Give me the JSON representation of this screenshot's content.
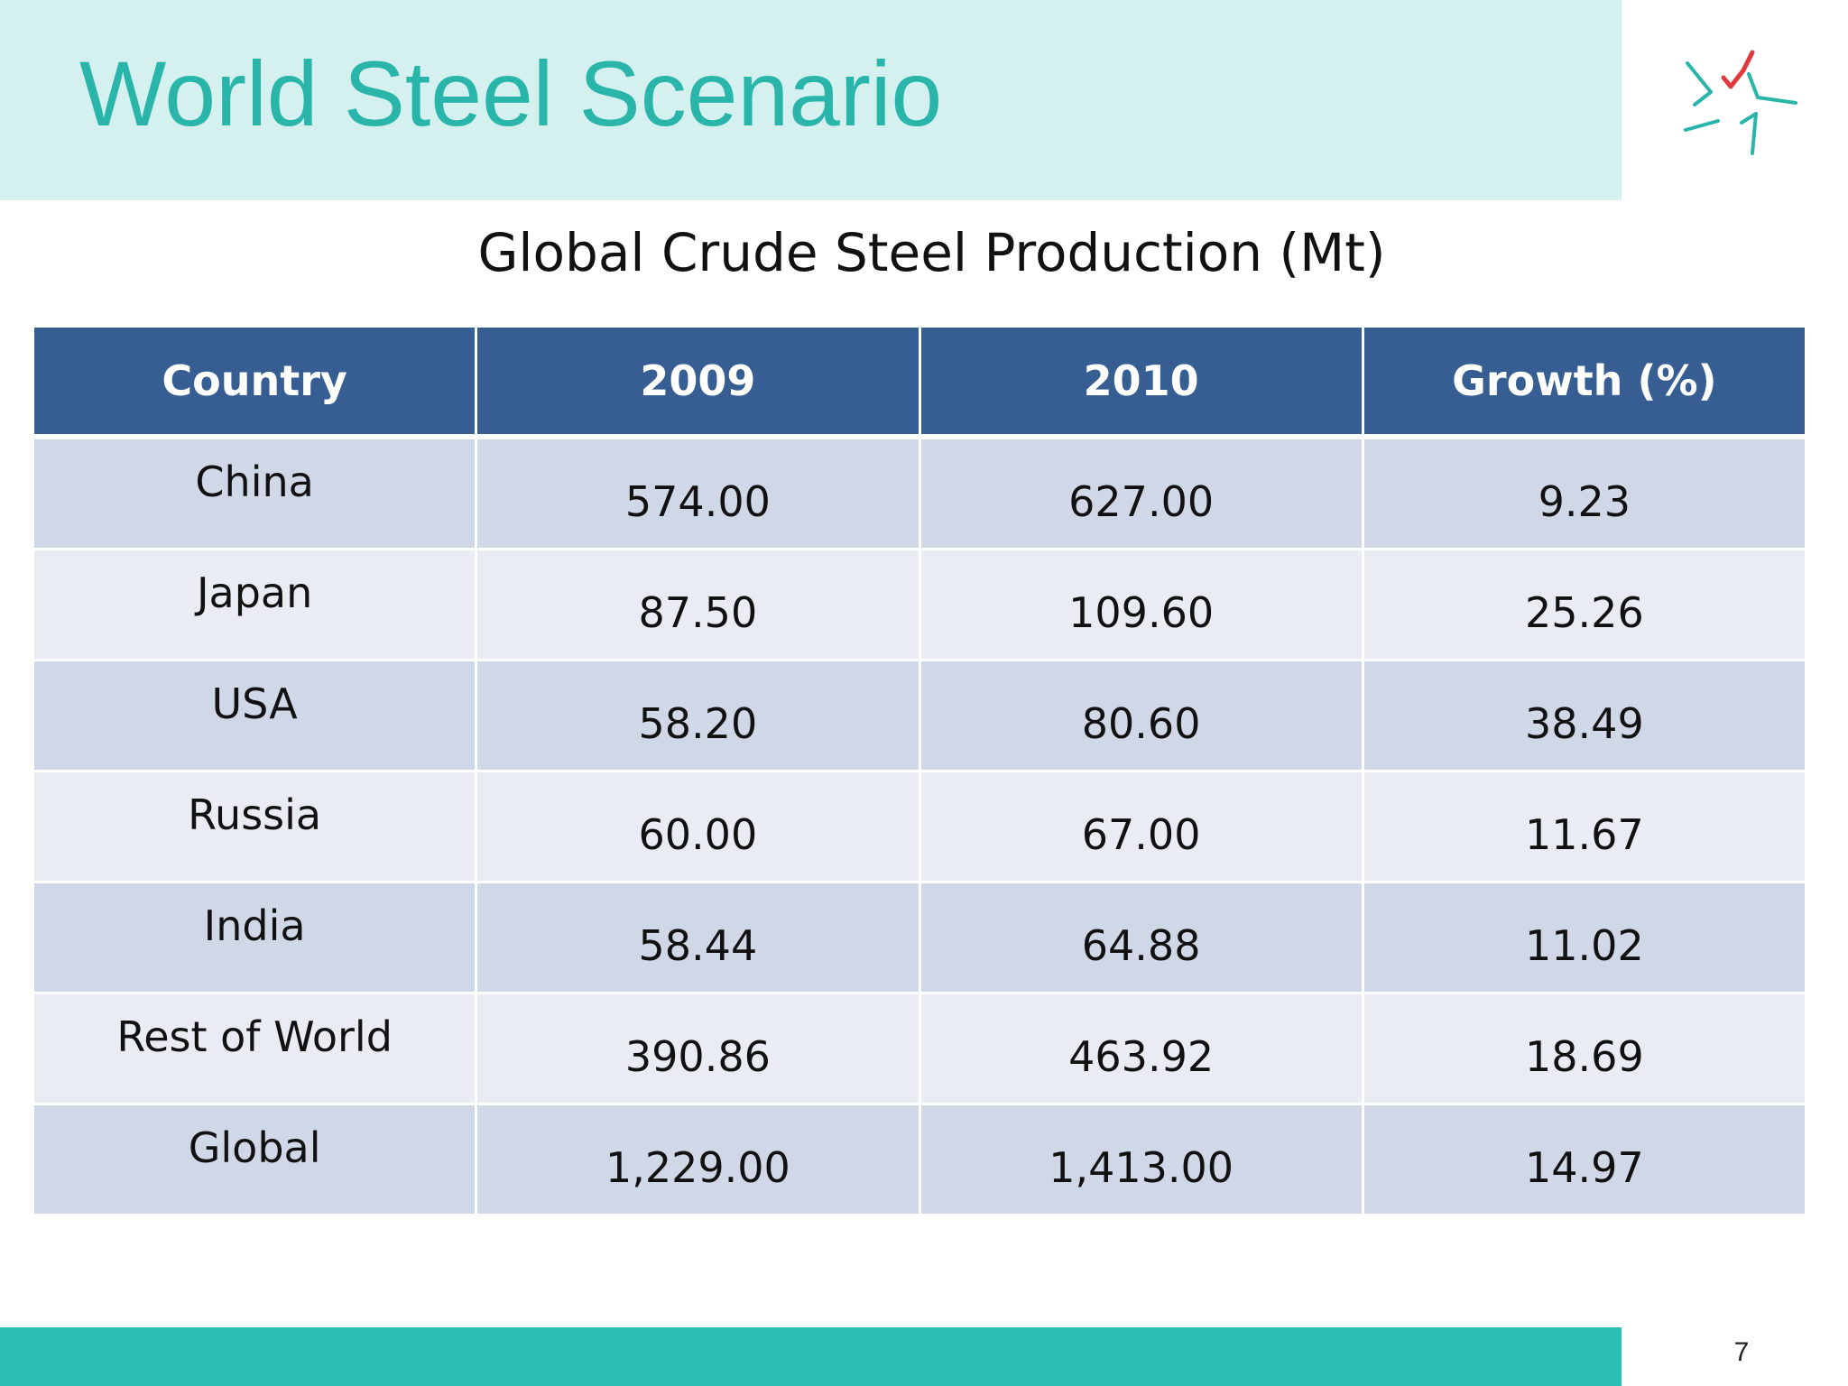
{
  "slide": {
    "title": "World Steel Scenario",
    "subtitle": "Global Crude Steel Production (Mt)",
    "page_number": "7",
    "logo_icon": "star-logo-icon"
  },
  "colors": {
    "title_band": "#d4f0ef",
    "title_text": "#2ab5aa",
    "header_row": "#375e92",
    "row_dark": "#d0d8e8",
    "row_light": "#e9ecf3",
    "footer_band": "#2bbfb4",
    "logo_red": "#e0393e",
    "logo_teal": "#2ab5aa"
  },
  "table": {
    "headers": [
      "Country",
      "2009",
      "2010",
      "Growth (%)"
    ],
    "rows": [
      [
        "China",
        "574.00",
        "627.00",
        "9.23"
      ],
      [
        "Japan",
        "87.50",
        "109.60",
        "25.26"
      ],
      [
        "USA",
        "58.20",
        "80.60",
        "38.49"
      ],
      [
        "Russia",
        "60.00",
        "67.00",
        "11.67"
      ],
      [
        "India",
        "58.44",
        "64.88",
        "11.02"
      ],
      [
        "Rest of World",
        "390.86",
        "463.92",
        "18.69"
      ],
      [
        "Global",
        "1,229.00",
        "1,413.00",
        "14.97"
      ]
    ]
  }
}
